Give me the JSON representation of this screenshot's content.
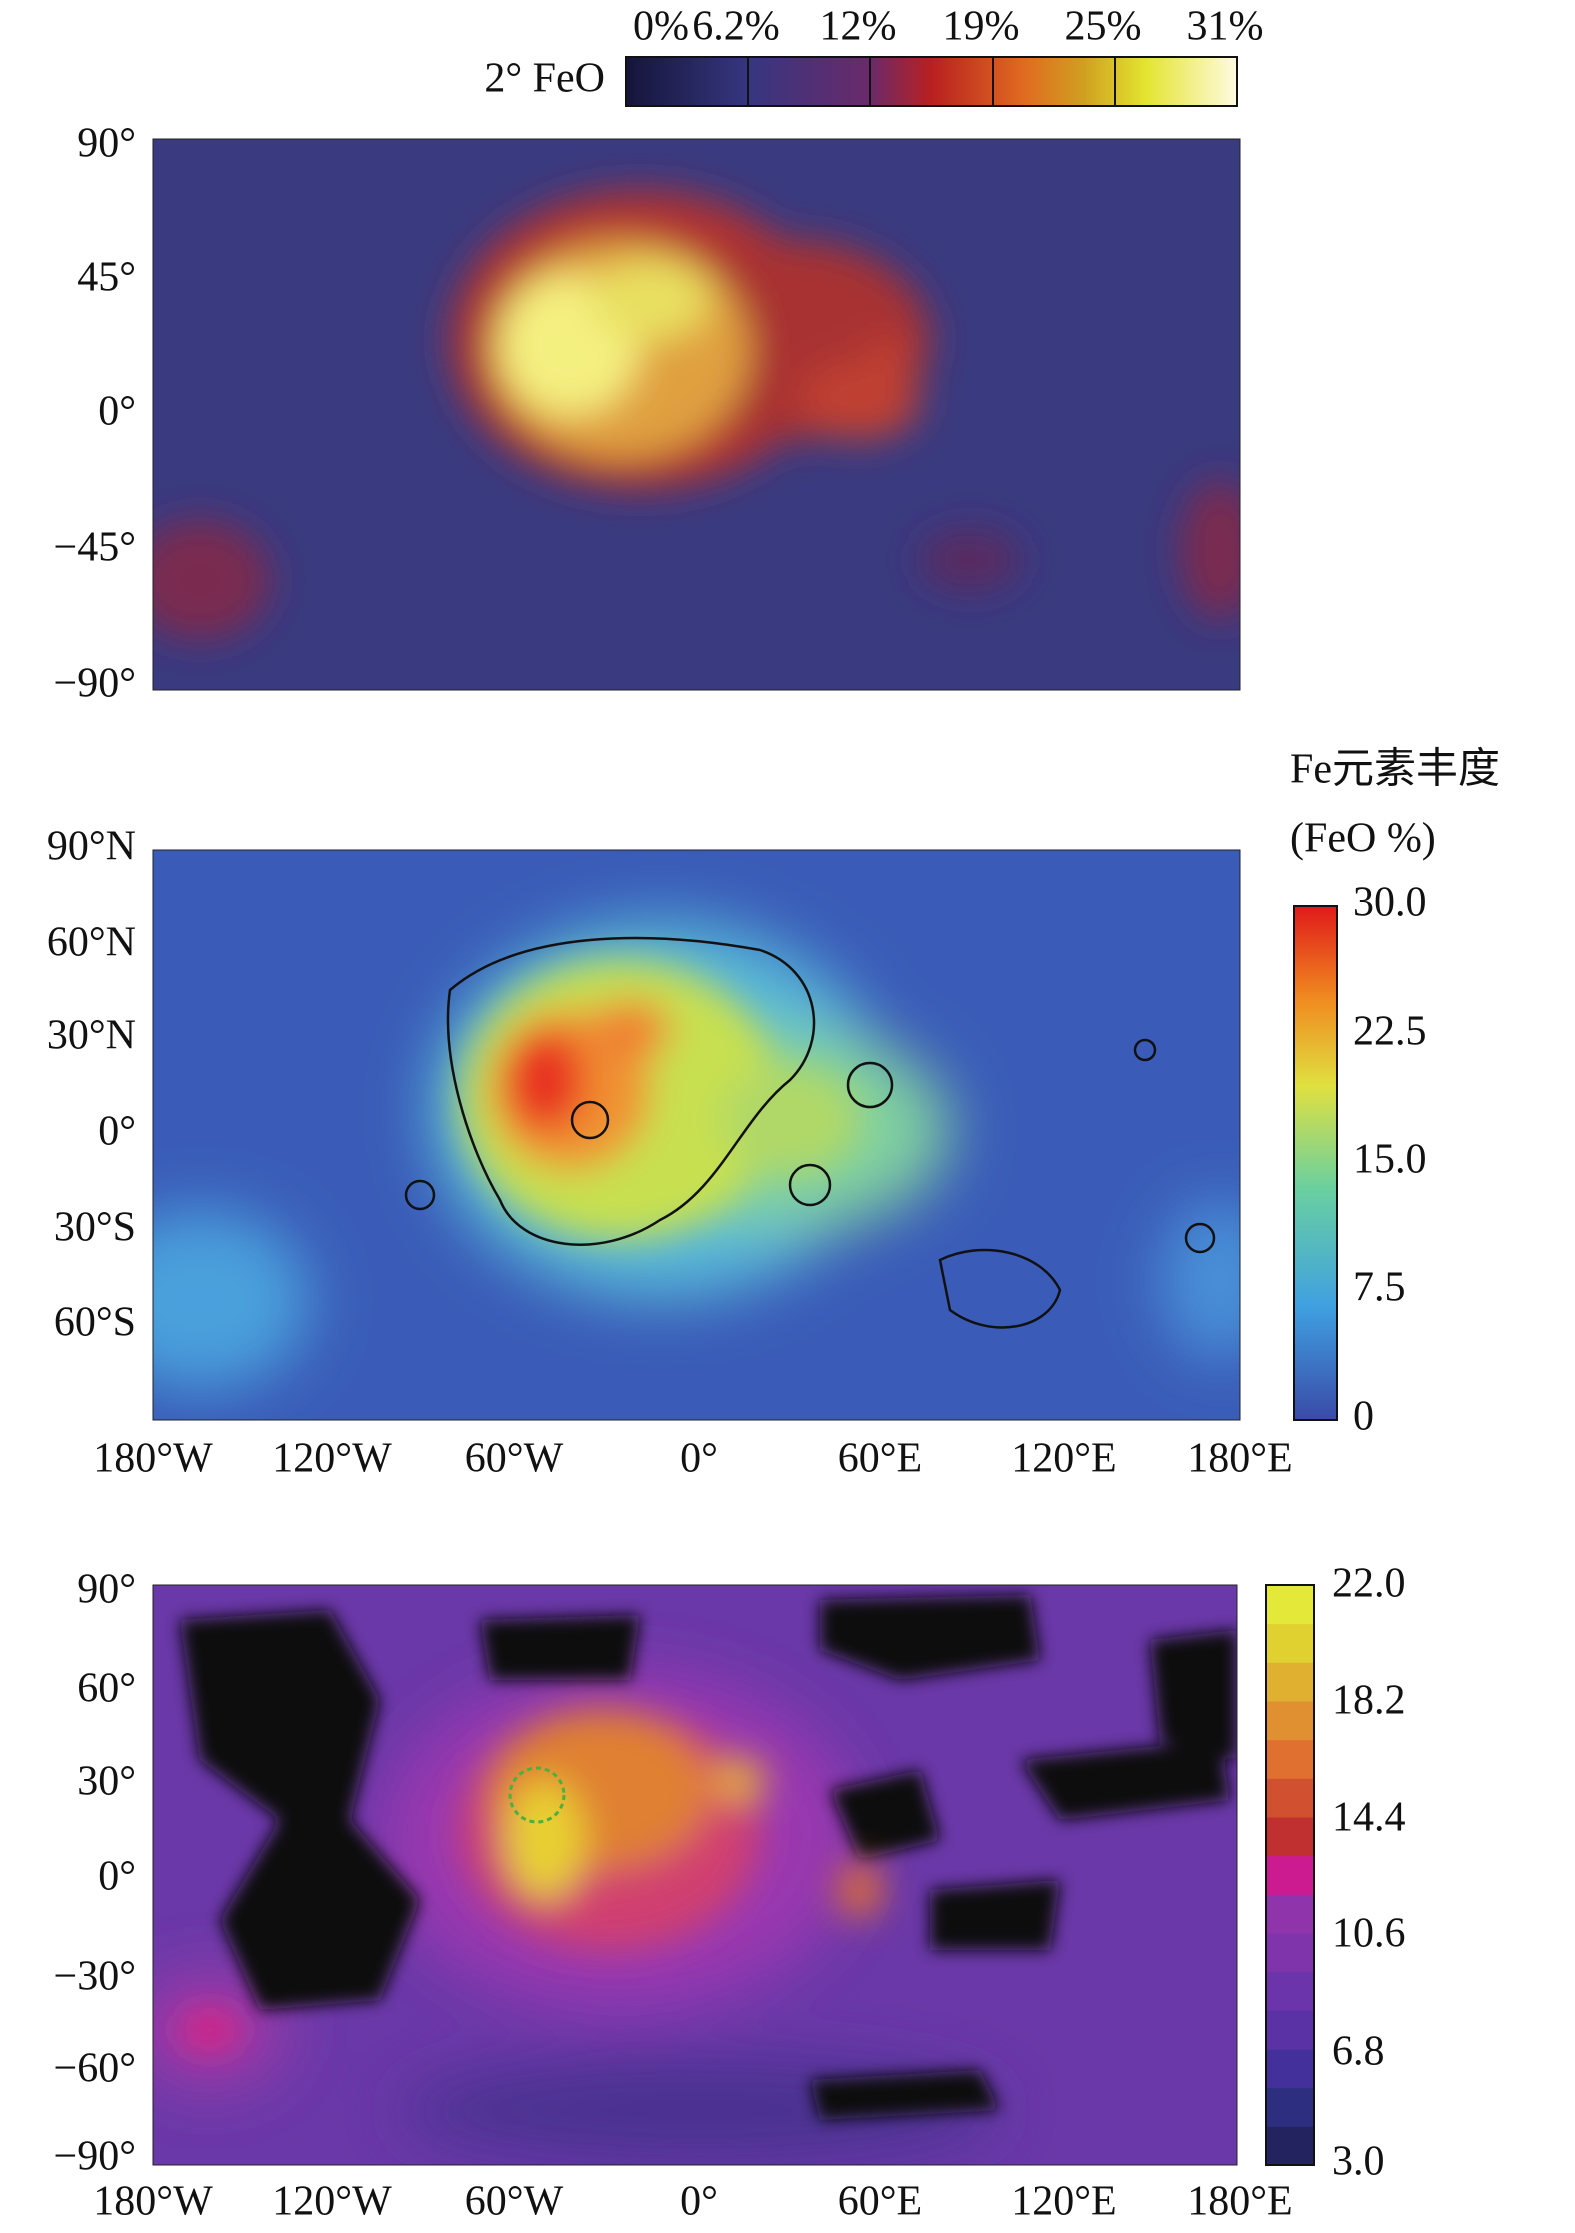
{
  "panels": [
    {
      "colorbar_title": "2° FeO",
      "colorbar_labels": [
        "0%",
        "6.2%",
        "12%",
        "19%",
        "25%",
        "31%"
      ],
      "lat_labels": [
        "90°",
        "45°",
        "0°",
        "−45°",
        "−90°"
      ]
    },
    {
      "colorbar_title": [
        "Fe元素丰度",
        "(FeO %)"
      ],
      "colorbar_labels": [
        "30.0",
        "22.5",
        "15.0",
        "7.5",
        "0"
      ],
      "lat_labels": [
        "90°N",
        "60°N",
        "30°N",
        "0°",
        "30°S",
        "60°S"
      ],
      "lon_labels": [
        "180°W",
        "120°W",
        "60°W",
        "0°",
        "60°E",
        "120°E",
        "180°E"
      ]
    },
    {
      "colorbar_labels": [
        "22.0",
        "18.2",
        "14.4",
        "10.6",
        "6.8",
        "3.0"
      ],
      "lat_labels": [
        "90°",
        "60°",
        "30°",
        "0°",
        "−30°",
        "−60°",
        "−90°"
      ],
      "lon_labels": [
        "180°W",
        "120°W",
        "60°W",
        "0°",
        "60°E",
        "120°E",
        "180°E"
      ]
    }
  ]
}
